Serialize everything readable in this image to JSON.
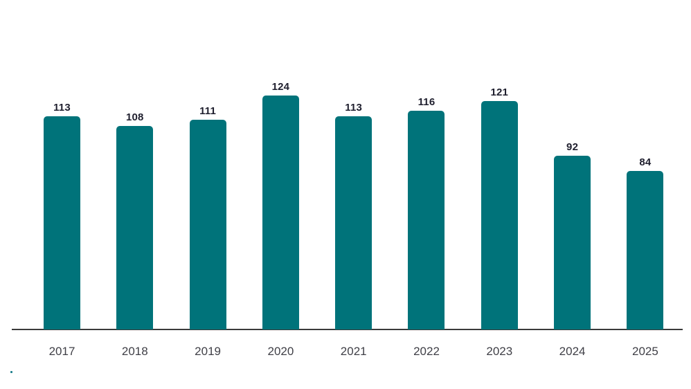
{
  "chart_data": {
    "type": "bar",
    "categories": [
      "2017",
      "2018",
      "2019",
      "2020",
      "2021",
      "2022",
      "2023",
      "2024",
      "2025"
    ],
    "values": [
      113,
      108,
      111,
      124,
      113,
      116,
      121,
      92,
      84
    ],
    "title": "",
    "xlabel": "",
    "ylabel": "",
    "ylim": [
      0,
      140
    ],
    "grid": false,
    "legend": false,
    "value_labels_shown": true,
    "axis_line": "bottom-only",
    "colors": {
      "bar": "#00737a",
      "value_label": "#1f1f2e",
      "category_label": "#3f3f46",
      "axis": "#3a3a3a",
      "stray_dot": "#1d7f8c",
      "background": "#ffffff"
    }
  }
}
